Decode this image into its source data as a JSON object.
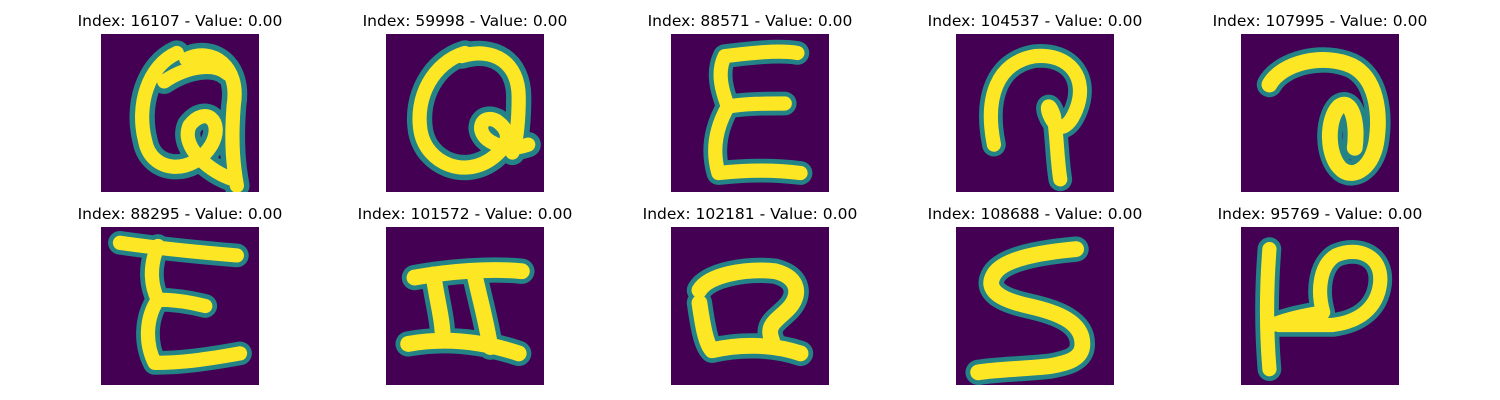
{
  "colors": {
    "background": "#440154",
    "edge": "#21918c",
    "stroke": "#fde725"
  },
  "panels": [
    {
      "index": "16107",
      "value": "0.00",
      "title": "Index: 16107 - Value: 0.00",
      "glyph": "a-looped"
    },
    {
      "index": "59998",
      "value": "0.00",
      "title": "Index: 59998 - Value: 0.00",
      "glyph": "a-looped-2"
    },
    {
      "index": "88571",
      "value": "0.00",
      "title": "Index: 88571 - Value: 0.00",
      "glyph": "epsilon"
    },
    {
      "index": "104537",
      "value": "0.00",
      "title": "Index: 104537 - Value: 0.00",
      "glyph": "hook"
    },
    {
      "index": "107995",
      "value": "0.00",
      "title": "Index: 107995 - Value: 0.00",
      "glyph": "a-round"
    },
    {
      "index": "88295",
      "value": "0.00",
      "title": "Index: 88295 - Value: 0.00",
      "glyph": "epsilon-2"
    },
    {
      "index": "101572",
      "value": "0.00",
      "title": "Index: 101572 - Value: 0.00",
      "glyph": "h-sideways"
    },
    {
      "index": "102181",
      "value": "0.00",
      "title": "Index: 102181 - Value: 0.00",
      "glyph": "two-sideways"
    },
    {
      "index": "108688",
      "value": "0.00",
      "title": "Index: 108688 - Value: 0.00",
      "glyph": "s"
    },
    {
      "index": "95769",
      "value": "0.00",
      "title": "Index: 95769 - Value: 0.00",
      "glyph": "p-sideways"
    }
  ]
}
